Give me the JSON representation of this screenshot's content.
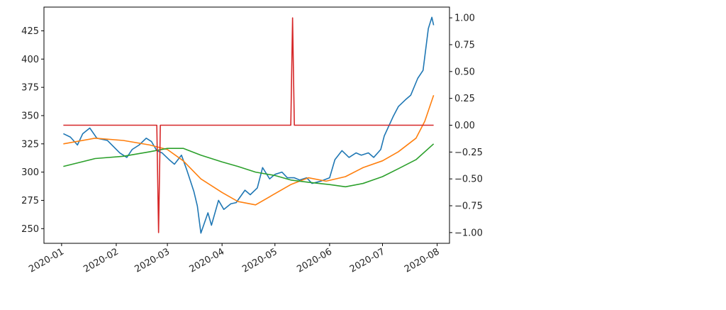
{
  "chart_data": {
    "type": "line",
    "xlim": [
      "2019-12-22",
      "2020-08-08"
    ],
    "xticks": [
      {
        "value": "2020-01-01",
        "label": "2020-01"
      },
      {
        "value": "2020-02-01",
        "label": "2020-02"
      },
      {
        "value": "2020-03-01",
        "label": "2020-03"
      },
      {
        "value": "2020-04-01",
        "label": "2020-04"
      },
      {
        "value": "2020-05-01",
        "label": "2020-05"
      },
      {
        "value": "2020-06-01",
        "label": "2020-06"
      },
      {
        "value": "2020-07-01",
        "label": "2020-07"
      },
      {
        "value": "2020-08-01",
        "label": "2020-08"
      }
    ],
    "ylim": [
      237,
      446
    ],
    "yticks": [
      250,
      275,
      300,
      325,
      350,
      375,
      400,
      425
    ],
    "y2lim": [
      -1.1,
      1.1
    ],
    "y2ticks": [
      {
        "value": -1,
        "label": "−1.00"
      },
      {
        "value": -0.75,
        "label": "−0.75"
      },
      {
        "value": -0.5,
        "label": "−0.50"
      },
      {
        "value": -0.25,
        "label": "−0.25"
      },
      {
        "value": 0,
        "label": "0.00"
      },
      {
        "value": 0.25,
        "label": "0.25"
      },
      {
        "value": 0.5,
        "label": "0.50"
      },
      {
        "value": 0.75,
        "label": "0.75"
      },
      {
        "value": 1,
        "label": "1.00"
      }
    ],
    "series": [
      {
        "color": "#1f77b4",
        "x": [
          "2020-01-02",
          "2020-01-06",
          "2020-01-10",
          "2020-01-13",
          "2020-01-17",
          "2020-01-21",
          "2020-01-27",
          "2020-02-03",
          "2020-02-07",
          "2020-02-10",
          "2020-02-14",
          "2020-02-18",
          "2020-02-21",
          "2020-02-24",
          "2020-02-27",
          "2020-03-02",
          "2020-03-05",
          "2020-03-09",
          "2020-03-12",
          "2020-03-16",
          "2020-03-18",
          "2020-03-20",
          "2020-03-24",
          "2020-03-26",
          "2020-03-30",
          "2020-04-02",
          "2020-04-06",
          "2020-04-09",
          "2020-04-14",
          "2020-04-17",
          "2020-04-21",
          "2020-04-24",
          "2020-04-28",
          "2020-05-01",
          "2020-05-05",
          "2020-05-08",
          "2020-05-12",
          "2020-05-15",
          "2020-05-19",
          "2020-05-22",
          "2020-05-27",
          "2020-06-01",
          "2020-06-04",
          "2020-06-08",
          "2020-06-12",
          "2020-06-16",
          "2020-06-19",
          "2020-06-23",
          "2020-06-26",
          "2020-06-30",
          "2020-07-02",
          "2020-07-07",
          "2020-07-10",
          "2020-07-14",
          "2020-07-17",
          "2020-07-21",
          "2020-07-24",
          "2020-07-27",
          "2020-07-29",
          "2020-07-30"
        ],
        "values": [
          334,
          331,
          324,
          334,
          339,
          330,
          328,
          317,
          313,
          320,
          324,
          330,
          327,
          319,
          317,
          311,
          307,
          315,
          302,
          283,
          270,
          246,
          264,
          253,
          275,
          267,
          272,
          273,
          284,
          280,
          286,
          304,
          294,
          298,
          300,
          295,
          295,
          293,
          295,
          290,
          292,
          295,
          311,
          319,
          313,
          317,
          315,
          317,
          313,
          320,
          332,
          349,
          358,
          364,
          368,
          383,
          390,
          427,
          437,
          430
        ]
      },
      {
        "color": "#ff7f0e",
        "x": [
          "2020-01-02",
          "2020-01-20",
          "2020-02-05",
          "2020-02-20",
          "2020-03-01",
          "2020-03-10",
          "2020-03-20",
          "2020-04-01",
          "2020-04-10",
          "2020-04-20",
          "2020-04-30",
          "2020-05-10",
          "2020-05-20",
          "2020-05-30",
          "2020-06-10",
          "2020-06-20",
          "2020-07-01",
          "2020-07-10",
          "2020-07-20",
          "2020-07-25",
          "2020-07-30"
        ],
        "values": [
          325,
          330,
          328,
          324,
          320,
          310,
          294,
          282,
          274,
          271,
          280,
          289,
          295,
          292,
          296,
          304,
          310,
          318,
          330,
          345,
          368
        ]
      },
      {
        "color": "#2ca02c",
        "x": [
          "2020-01-02",
          "2020-01-20",
          "2020-02-05",
          "2020-02-20",
          "2020-03-01",
          "2020-03-10",
          "2020-03-20",
          "2020-04-01",
          "2020-04-10",
          "2020-04-20",
          "2020-05-01",
          "2020-05-10",
          "2020-05-20",
          "2020-06-01",
          "2020-06-10",
          "2020-06-20",
          "2020-07-01",
          "2020-07-10",
          "2020-07-20",
          "2020-07-30"
        ],
        "values": [
          305,
          312,
          314,
          318,
          321,
          321,
          315,
          309,
          305,
          300,
          297,
          293,
          291,
          289,
          287,
          290,
          296,
          303,
          311,
          325
        ]
      },
      {
        "color": "#d62728",
        "axis": "y2",
        "x": [
          "2020-01-02",
          "2020-02-24",
          "2020-02-25",
          "2020-02-26",
          "2020-05-10",
          "2020-05-11",
          "2020-05-12",
          "2020-07-30"
        ],
        "values": [
          0,
          0,
          -1,
          0,
          0,
          1,
          0,
          0
        ]
      }
    ]
  }
}
